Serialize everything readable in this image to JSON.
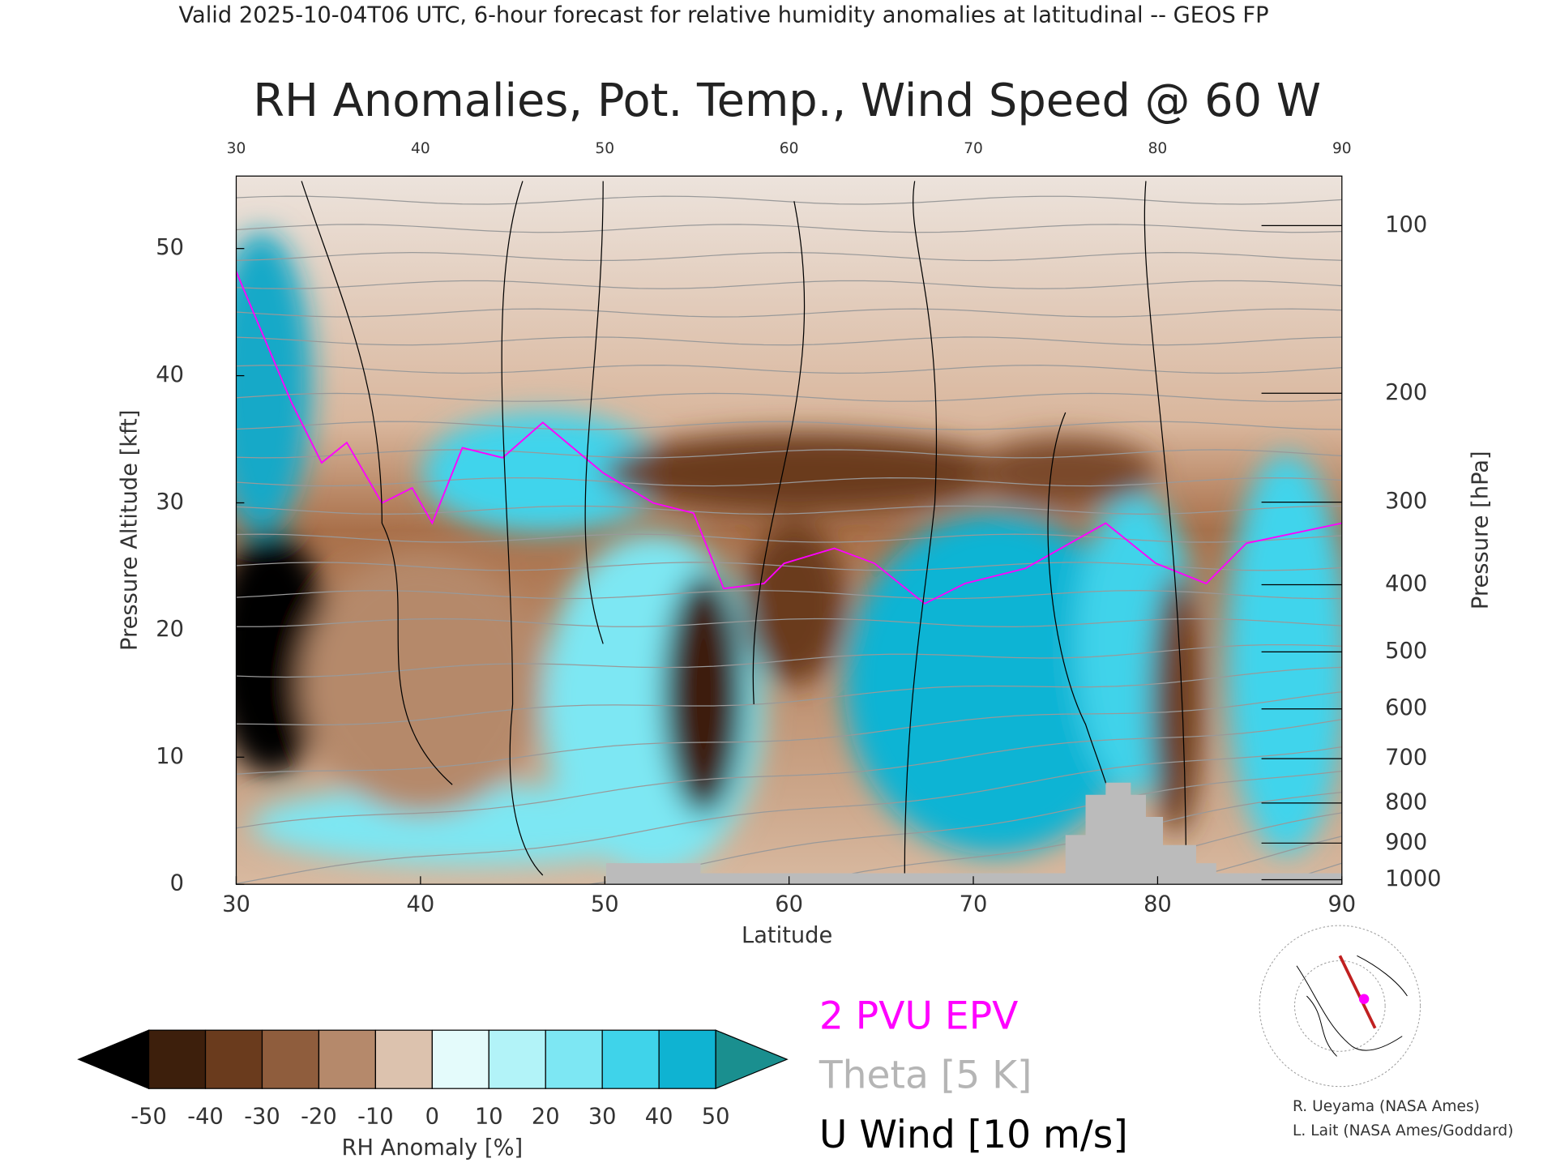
{
  "chart_data": {
    "type": "cross-section",
    "header": "Valid 2025-10-04T06 UTC, 6-hour forecast for relative humidity anomalies at latitudinal -- GEOS FP",
    "title": "RH Anomalies, Pot. Temp., Wind Speed @ 60 W",
    "x_label": "Latitude",
    "y_label": "Pressure Altitude [kft]",
    "y2_label": "Pressure [hPa]",
    "xlim": [
      30,
      90
    ],
    "xticks": [
      30,
      40,
      50,
      60,
      70,
      80,
      90
    ],
    "ylim": [
      0,
      55.7
    ],
    "yticks": [
      0,
      10,
      20,
      30,
      40,
      50
    ],
    "y2scale": "pressure-altitude",
    "y2ticks": [
      100,
      200,
      300,
      400,
      500,
      600,
      700,
      800,
      900,
      1000
    ],
    "colorbar": {
      "label": "RH Anomaly [%]",
      "levels": [
        -50,
        -40,
        -30,
        -20,
        -10,
        0,
        10,
        20,
        30,
        40,
        50
      ],
      "colors": [
        "#3d1f0c",
        "#6a3b1d",
        "#8f5d3d",
        "#b5896b",
        "#dcc2ae",
        "#e4fbfb",
        "#b2f3f8",
        "#7de7f3",
        "#3fd3ea",
        "#0fb3d2"
      ],
      "under": "#000000",
      "over": "#1a8f8f"
    },
    "legend": [
      {
        "name": "2 PVU EPV",
        "color": "#ff00ff"
      },
      {
        "name": "Theta [5 K]",
        "color": "#b5b5b5"
      },
      {
        "name": "U Wind [10 m/s]",
        "color": "#000000"
      }
    ],
    "credits": [
      "R. Ueyama (NASA Ames)",
      "L. Lait (NASA Ames/Goddard)"
    ]
  }
}
